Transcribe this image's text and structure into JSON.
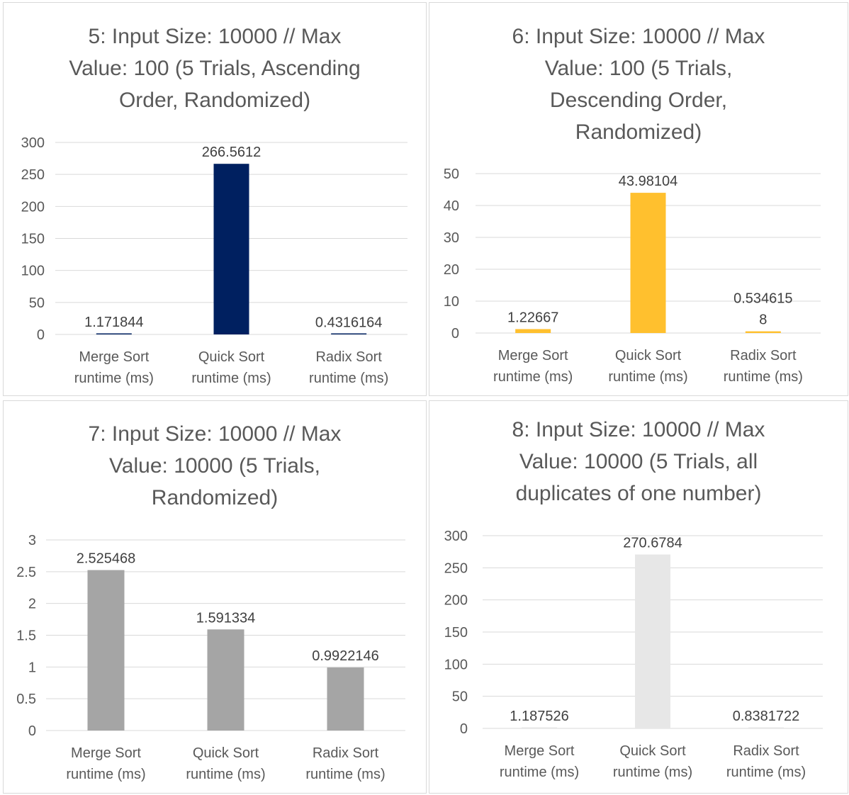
{
  "chart_data": [
    {
      "type": "bar",
      "title": "5: Input Size: 10000 // Max Value: 100 (5 Trials, Ascending Order, Randomized)",
      "title_lines": [
        "5: Input Size: 10000 // Max",
        "Value: 100 (5 Trials, Ascending",
        "Order, Randomized)"
      ],
      "categories": [
        "Merge Sort runtime (ms)",
        "Quick Sort runtime (ms)",
        "Radix Sort runtime (ms)"
      ],
      "category_lines": [
        [
          "Merge Sort",
          "runtime (ms)"
        ],
        [
          "Quick Sort",
          "runtime (ms)"
        ],
        [
          "Radix Sort",
          "runtime (ms)"
        ]
      ],
      "values": [
        1.171844,
        266.5612,
        0.4316164
      ],
      "data_labels": [
        [
          "1.171844"
        ],
        [
          "266.5612"
        ],
        [
          "0.4316164"
        ]
      ],
      "ylim": [
        0,
        300
      ],
      "yticks": [
        0,
        50,
        100,
        150,
        200,
        250,
        300
      ],
      "ytick_labels": [
        "0",
        "50",
        "100",
        "150",
        "200",
        "250",
        "300"
      ],
      "color": "#002060",
      "grid": true,
      "xlabel": "",
      "ylabel": ""
    },
    {
      "type": "bar",
      "title": "6: Input Size: 10000 // Max Value: 100 (5 Trials, Descending Order, Randomized)",
      "title_lines": [
        "6: Input Size: 10000 // Max",
        "Value: 100 (5 Trials,",
        "Descending Order,",
        "Randomized)"
      ],
      "categories": [
        "Merge Sort runtime (ms)",
        "Quick Sort runtime (ms)",
        "Radix Sort runtime (ms)"
      ],
      "category_lines": [
        [
          "Merge Sort",
          "runtime (ms)"
        ],
        [
          "Quick Sort",
          "runtime (ms)"
        ],
        [
          "Radix Sort",
          "runtime (ms)"
        ]
      ],
      "values": [
        1.22667,
        43.98104,
        0.5346158
      ],
      "data_labels": [
        [
          "1.22667"
        ],
        [
          "43.98104"
        ],
        [
          "0.534615",
          "8"
        ]
      ],
      "ylim": [
        0,
        50
      ],
      "yticks": [
        0,
        10,
        20,
        30,
        40,
        50
      ],
      "ytick_labels": [
        "0",
        "10",
        "20",
        "30",
        "40",
        "50"
      ],
      "color": "#FFC02E",
      "grid": true,
      "xlabel": "",
      "ylabel": ""
    },
    {
      "type": "bar",
      "title": "7: Input Size: 10000 // Max Value: 10000 (5 Trials, Randomized)",
      "title_lines": [
        "7: Input Size: 10000 // Max",
        "Value: 10000 (5 Trials,",
        "Randomized)"
      ],
      "categories": [
        "Merge Sort runtime (ms)",
        "Quick Sort runtime (ms)",
        "Radix Sort runtime (ms)"
      ],
      "category_lines": [
        [
          "Merge Sort",
          "runtime (ms)"
        ],
        [
          "Quick Sort",
          "runtime (ms)"
        ],
        [
          "Radix Sort",
          "runtime (ms)"
        ]
      ],
      "values": [
        2.525468,
        1.591334,
        0.9922146
      ],
      "data_labels": [
        [
          "2.525468"
        ],
        [
          "1.591334"
        ],
        [
          "0.9922146"
        ]
      ],
      "ylim": [
        0,
        3
      ],
      "yticks": [
        0,
        0.5,
        1,
        1.5,
        2,
        2.5,
        3
      ],
      "ytick_labels": [
        "0",
        "0.5",
        "1",
        "1.5",
        "2",
        "2.5",
        "3"
      ],
      "color": "#A5A5A5",
      "grid": true,
      "xlabel": "",
      "ylabel": ""
    },
    {
      "type": "bar",
      "title": "8: Input Size: 10000 // Max Value: 10000 (5 Trials, all duplicates of one number)",
      "title_lines": [
        "8: Input Size: 10000 // Max",
        "Value: 10000 (5 Trials, all",
        "duplicates of one number)"
      ],
      "categories": [
        "Merge Sort runtime (ms)",
        "Quick Sort runtime (ms)",
        "Radix Sort runtime (ms)"
      ],
      "category_lines": [
        [
          "Merge Sort",
          "runtime (ms)"
        ],
        [
          "Quick Sort",
          "runtime (ms)"
        ],
        [
          "Radix Sort",
          "runtime (ms)"
        ]
      ],
      "values": [
        1.187526,
        270.6784,
        0.8381722
      ],
      "data_labels": [
        [
          "1.187526"
        ],
        [
          "270.6784"
        ],
        [
          "0.8381722"
        ]
      ],
      "ylim": [
        0,
        300
      ],
      "yticks": [
        0,
        50,
        100,
        150,
        200,
        250,
        300
      ],
      "ytick_labels": [
        "0",
        "50",
        "100",
        "150",
        "200",
        "250",
        "300"
      ],
      "color": "#E7E7E7",
      "grid": true,
      "xlabel": "",
      "ylabel": ""
    }
  ]
}
